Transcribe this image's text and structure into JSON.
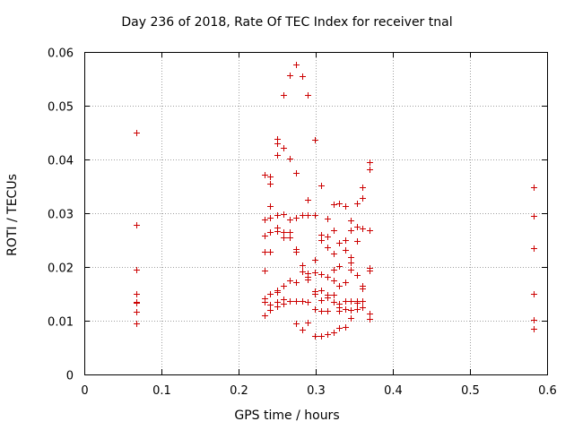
{
  "chart_data": {
    "type": "scatter",
    "title": "Day 236 of 2018, Rate Of TEC Index for receiver tnal",
    "xlabel": "GPS time / hours",
    "ylabel": "ROTI / TECUs",
    "xlim": [
      0,
      0.6
    ],
    "ylim": [
      0,
      0.06
    ],
    "xticks": [
      "0",
      "0.1",
      "0.2",
      "0.3",
      "0.4",
      "0.5",
      "0.6"
    ],
    "yticks": [
      "0",
      "0.01",
      "0.02",
      "0.03",
      "0.04",
      "0.05",
      "0.06"
    ],
    "grid": true,
    "marker": "+",
    "color": "#cc0000",
    "series": [
      {
        "name": "tnal",
        "points": [
          [
            0.067,
            0.045
          ],
          [
            0.067,
            0.0278
          ],
          [
            0.067,
            0.0195
          ],
          [
            0.067,
            0.015
          ],
          [
            0.067,
            0.0135
          ],
          [
            0.067,
            0.0133
          ],
          [
            0.067,
            0.0117
          ],
          [
            0.067,
            0.0095
          ],
          [
            0.234,
            0.0372
          ],
          [
            0.234,
            0.0289
          ],
          [
            0.234,
            0.0288
          ],
          [
            0.234,
            0.0258
          ],
          [
            0.234,
            0.0229
          ],
          [
            0.234,
            0.0193
          ],
          [
            0.234,
            0.0142
          ],
          [
            0.234,
            0.0135
          ],
          [
            0.234,
            0.011
          ],
          [
            0.241,
            0.0368
          ],
          [
            0.241,
            0.0355
          ],
          [
            0.241,
            0.0313
          ],
          [
            0.241,
            0.0292
          ],
          [
            0.241,
            0.0265
          ],
          [
            0.241,
            0.0229
          ],
          [
            0.241,
            0.015
          ],
          [
            0.241,
            0.013
          ],
          [
            0.241,
            0.012
          ],
          [
            0.25,
            0.0438
          ],
          [
            0.25,
            0.043
          ],
          [
            0.25,
            0.0408
          ],
          [
            0.25,
            0.0296
          ],
          [
            0.25,
            0.0273
          ],
          [
            0.25,
            0.0267
          ],
          [
            0.25,
            0.0157
          ],
          [
            0.25,
            0.0154
          ],
          [
            0.25,
            0.0135
          ],
          [
            0.25,
            0.0127
          ],
          [
            0.258,
            0.052
          ],
          [
            0.258,
            0.0422
          ],
          [
            0.258,
            0.0298
          ],
          [
            0.258,
            0.0265
          ],
          [
            0.258,
            0.0255
          ],
          [
            0.258,
            0.0165
          ],
          [
            0.258,
            0.014
          ],
          [
            0.258,
            0.0132
          ],
          [
            0.266,
            0.0557
          ],
          [
            0.266,
            0.0402
          ],
          [
            0.266,
            0.0288
          ],
          [
            0.266,
            0.0265
          ],
          [
            0.266,
            0.0255
          ],
          [
            0.266,
            0.0175
          ],
          [
            0.266,
            0.0137
          ],
          [
            0.274,
            0.0577
          ],
          [
            0.274,
            0.0375
          ],
          [
            0.274,
            0.0291
          ],
          [
            0.274,
            0.0233
          ],
          [
            0.274,
            0.0228
          ],
          [
            0.274,
            0.0172
          ],
          [
            0.274,
            0.0137
          ],
          [
            0.274,
            0.0095
          ],
          [
            0.283,
            0.0555
          ],
          [
            0.283,
            0.0297
          ],
          [
            0.283,
            0.0203
          ],
          [
            0.283,
            0.0192
          ],
          [
            0.283,
            0.0137
          ],
          [
            0.283,
            0.0083
          ],
          [
            0.29,
            0.052
          ],
          [
            0.29,
            0.0325
          ],
          [
            0.29,
            0.0296
          ],
          [
            0.29,
            0.0188
          ],
          [
            0.29,
            0.0182
          ],
          [
            0.29,
            0.0177
          ],
          [
            0.29,
            0.0135
          ],
          [
            0.29,
            0.0097
          ],
          [
            0.299,
            0.0436
          ],
          [
            0.299,
            0.0297
          ],
          [
            0.299,
            0.0213
          ],
          [
            0.299,
            0.019
          ],
          [
            0.299,
            0.0155
          ],
          [
            0.299,
            0.015
          ],
          [
            0.299,
            0.0122
          ],
          [
            0.299,
            0.0072
          ],
          [
            0.307,
            0.0351
          ],
          [
            0.307,
            0.026
          ],
          [
            0.307,
            0.025
          ],
          [
            0.307,
            0.0187
          ],
          [
            0.307,
            0.0157
          ],
          [
            0.307,
            0.0138
          ],
          [
            0.307,
            0.0118
          ],
          [
            0.307,
            0.0072
          ],
          [
            0.315,
            0.029
          ],
          [
            0.315,
            0.0256
          ],
          [
            0.315,
            0.0237
          ],
          [
            0.315,
            0.0182
          ],
          [
            0.315,
            0.0148
          ],
          [
            0.315,
            0.0143
          ],
          [
            0.315,
            0.0118
          ],
          [
            0.315,
            0.0075
          ],
          [
            0.323,
            0.0317
          ],
          [
            0.323,
            0.0268
          ],
          [
            0.323,
            0.0225
          ],
          [
            0.323,
            0.0195
          ],
          [
            0.323,
            0.0175
          ],
          [
            0.323,
            0.0148
          ],
          [
            0.323,
            0.0135
          ],
          [
            0.323,
            0.0078
          ],
          [
            0.33,
            0.0319
          ],
          [
            0.33,
            0.0245
          ],
          [
            0.33,
            0.0202
          ],
          [
            0.33,
            0.0165
          ],
          [
            0.33,
            0.0132
          ],
          [
            0.33,
            0.0125
          ],
          [
            0.33,
            0.0118
          ],
          [
            0.33,
            0.0087
          ],
          [
            0.338,
            0.0313
          ],
          [
            0.338,
            0.025
          ],
          [
            0.338,
            0.0232
          ],
          [
            0.338,
            0.0172
          ],
          [
            0.338,
            0.0137
          ],
          [
            0.338,
            0.0122
          ],
          [
            0.338,
            0.0088
          ],
          [
            0.345,
            0.0287
          ],
          [
            0.345,
            0.0268
          ],
          [
            0.345,
            0.0218
          ],
          [
            0.345,
            0.0208
          ],
          [
            0.345,
            0.0195
          ],
          [
            0.345,
            0.0137
          ],
          [
            0.345,
            0.012
          ],
          [
            0.345,
            0.0105
          ],
          [
            0.353,
            0.0318
          ],
          [
            0.353,
            0.0275
          ],
          [
            0.353,
            0.0248
          ],
          [
            0.353,
            0.0185
          ],
          [
            0.353,
            0.0137
          ],
          [
            0.353,
            0.0133
          ],
          [
            0.353,
            0.0122
          ],
          [
            0.361,
            0.0328
          ],
          [
            0.361,
            0.0348
          ],
          [
            0.361,
            0.0272
          ],
          [
            0.361,
            0.0165
          ],
          [
            0.361,
            0.016
          ],
          [
            0.361,
            0.0137
          ],
          [
            0.361,
            0.0125
          ],
          [
            0.37,
            0.0395
          ],
          [
            0.37,
            0.0382
          ],
          [
            0.37,
            0.0268
          ],
          [
            0.37,
            0.0198
          ],
          [
            0.37,
            0.0193
          ],
          [
            0.37,
            0.0113
          ],
          [
            0.37,
            0.0103
          ],
          [
            0.583,
            0.0348
          ],
          [
            0.583,
            0.0295
          ],
          [
            0.583,
            0.0235
          ],
          [
            0.583,
            0.015
          ],
          [
            0.583,
            0.0102
          ],
          [
            0.583,
            0.0085
          ]
        ]
      }
    ]
  }
}
